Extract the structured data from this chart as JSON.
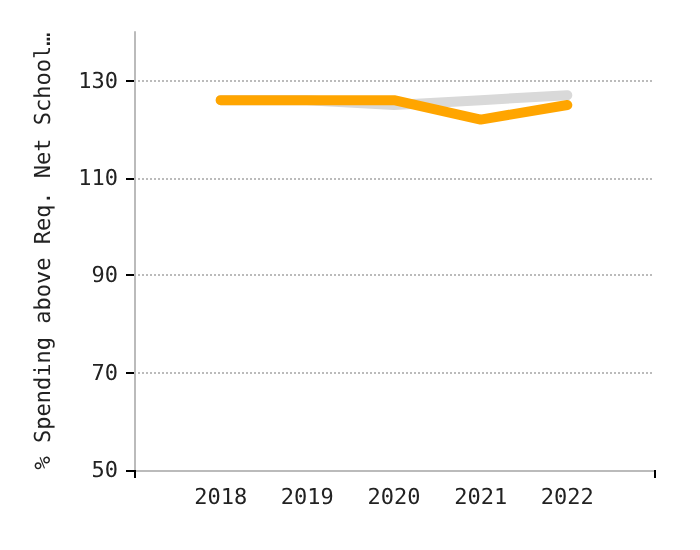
{
  "chart_data": {
    "type": "line",
    "ylabel": "% Spending above Req. Net School…",
    "x": [
      2018,
      2019,
      2020,
      2021,
      2022
    ],
    "series": [
      {
        "color": "#d9d9d9",
        "values": [
          126,
          126,
          125,
          126,
          127
        ]
      },
      {
        "color": "#ffa500",
        "values": [
          126,
          126,
          126,
          122,
          125
        ]
      }
    ],
    "xlim": [
      2017,
      2023
    ],
    "xticks": [
      {
        "value": 2017,
        "label": null
      },
      2018,
      2019,
      2020,
      2021,
      2022,
      {
        "value": 2023,
        "label": null
      }
    ],
    "ylim": [
      50,
      140
    ],
    "yticks": [
      50,
      70,
      90,
      110,
      130
    ],
    "grid": "y",
    "marker": "none",
    "line_style": "solid"
  }
}
